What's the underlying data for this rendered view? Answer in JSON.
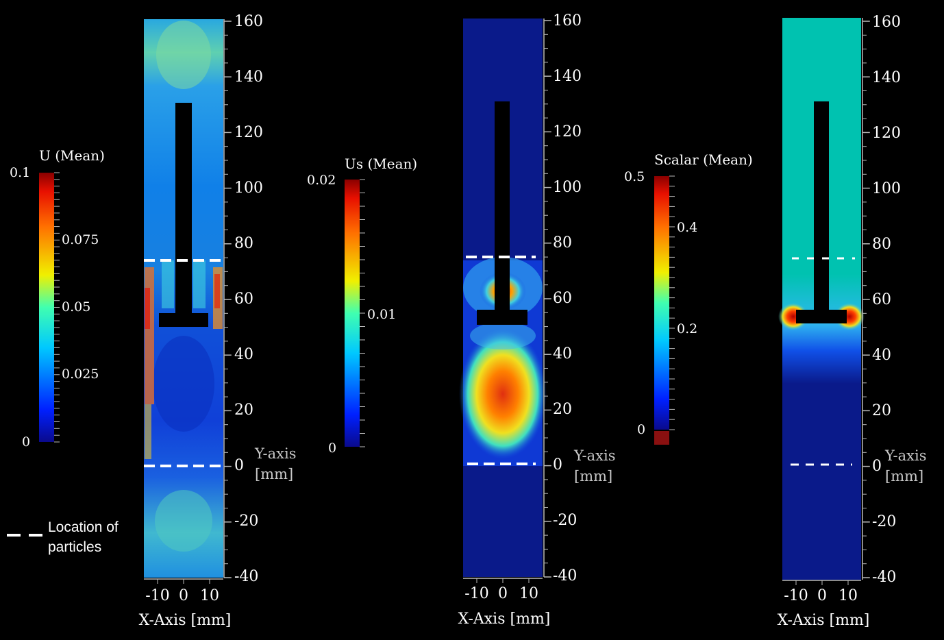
{
  "panels": [
    {
      "colorbar_title": "U (Mean)",
      "colorbar_ticks": [
        "0.1",
        "0.075",
        "0.05",
        "0.025",
        "0"
      ],
      "y_ticks": [
        "160",
        "140",
        "120",
        "100",
        "80",
        "60",
        "40",
        "20",
        "0",
        "-20",
        "-40"
      ],
      "x_ticks": [
        "-10",
        "0",
        "10"
      ],
      "x_label": "X-Axis [mm]",
      "y_label_line1": "Y-axis",
      "y_label_line2": "[mm]"
    },
    {
      "colorbar_title": "Us (Mean)",
      "colorbar_ticks": [
        "0.02",
        "0.01",
        "0"
      ],
      "y_ticks": [
        "160",
        "140",
        "120",
        "100",
        "80",
        "60",
        "40",
        "20",
        "0",
        "-20",
        "-40"
      ],
      "x_ticks": [
        "-10",
        "0",
        "10"
      ],
      "x_label": "X-Axis [mm]",
      "y_label_line1": "Y-axis",
      "y_label_line2": "[mm]"
    },
    {
      "colorbar_title": "Scalar (Mean)",
      "colorbar_ticks": [
        "0.5",
        "0.4",
        "0.2",
        "0"
      ],
      "y_ticks": [
        "160",
        "140",
        "120",
        "100",
        "80",
        "60",
        "40",
        "20",
        "0",
        "-20",
        "-40"
      ],
      "x_ticks": [
        "-10",
        "0",
        "10"
      ],
      "x_label": "X-Axis [mm]",
      "y_label_line1": "Y-axis",
      "y_label_line2": "[mm]"
    }
  ],
  "legend": {
    "line1": "Location of",
    "line2": "particles"
  },
  "colors": {
    "background": "#000000",
    "dashed_line": "#ffffff",
    "deep_blue": "#0a1a8a",
    "cyan_field": "#00c2b0",
    "hot": "#e02010"
  }
}
